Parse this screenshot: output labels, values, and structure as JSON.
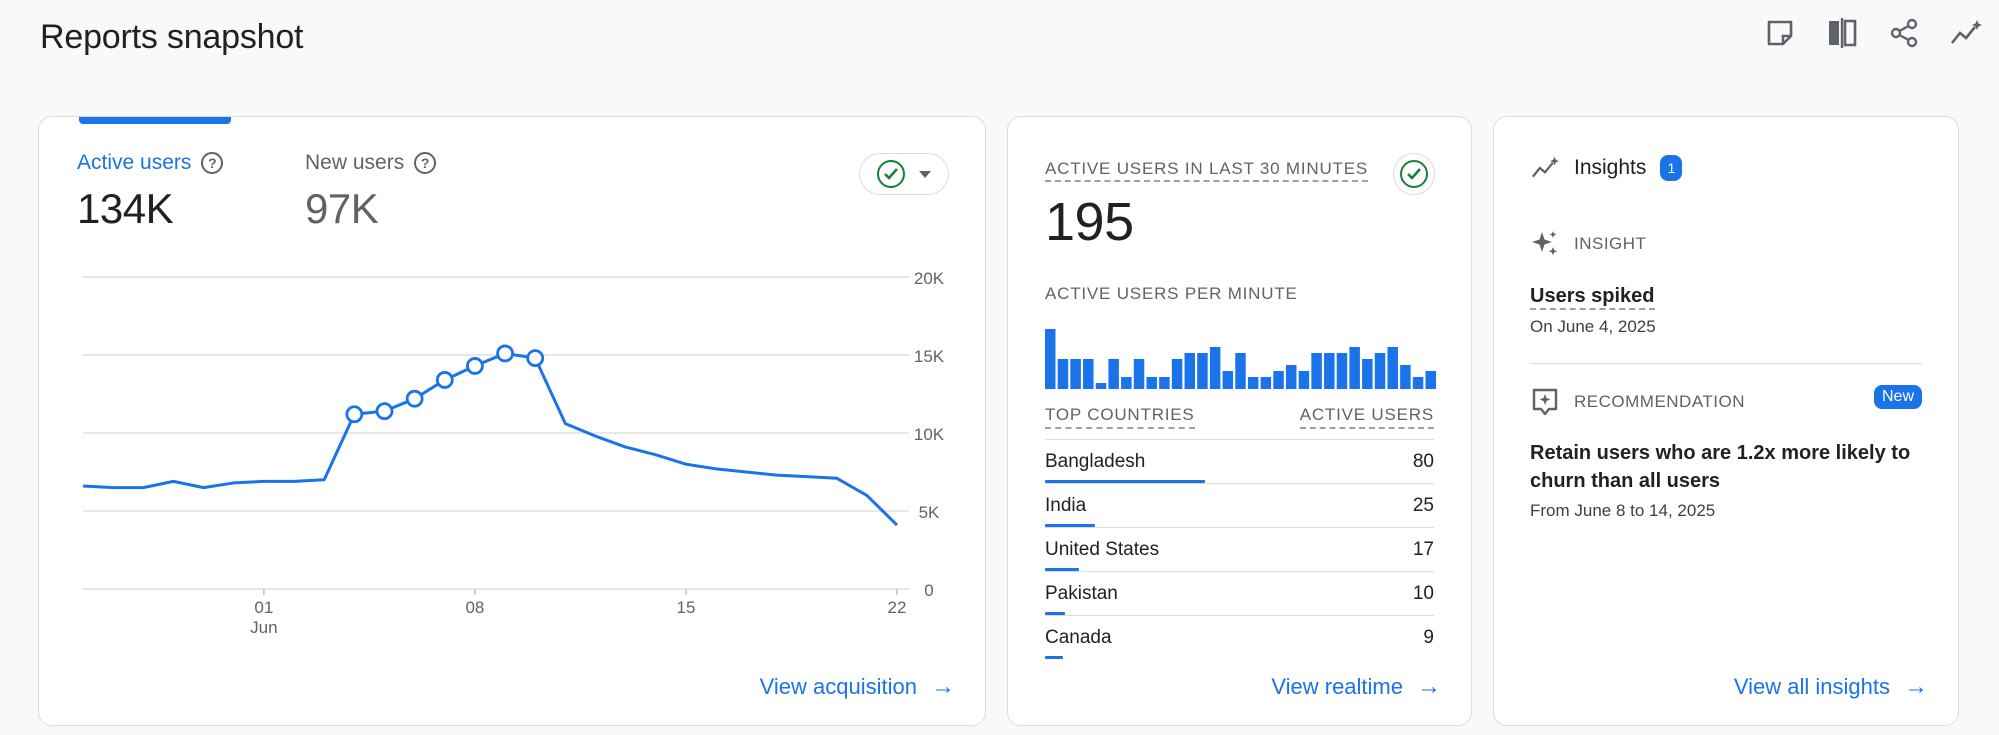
{
  "header": {
    "title": "Reports snapshot"
  },
  "toolbar": {
    "icons": [
      "customize-report-icon",
      "compare-icon",
      "share-icon",
      "insights-icon"
    ]
  },
  "card_overview": {
    "metrics": [
      {
        "label": "Active users",
        "value": "134K",
        "selected": true
      },
      {
        "label": "New users",
        "value": "97K",
        "selected": false
      }
    ],
    "status": "check-circle",
    "link": "View acquisition"
  },
  "chart_data": {
    "type": "line",
    "series": [
      {
        "name": "Active users",
        "values": [
          6600,
          6500,
          6500,
          6900,
          6500,
          6800,
          6900,
          6900,
          7000,
          11200,
          11400,
          12200,
          13400,
          14300,
          15100,
          14800,
          10600,
          9800,
          9100,
          8600,
          8000,
          7700,
          7500,
          7300,
          7200,
          7100,
          6000,
          4100
        ]
      }
    ],
    "highlight_points": [
      9,
      10,
      11,
      12,
      13,
      14,
      15
    ],
    "x_ticks": [
      {
        "index": 6,
        "label": "01",
        "sublabel": "Jun"
      },
      {
        "index": 13,
        "label": "08"
      },
      {
        "index": 20,
        "label": "15"
      },
      {
        "index": 27,
        "label": "22"
      }
    ],
    "y_ticks": [
      "0",
      "5K",
      "10K",
      "15K",
      "20K"
    ],
    "ylim": [
      0,
      20000
    ],
    "grid": true,
    "color": "#1a73e8"
  },
  "card_realtime": {
    "label": "ACTIVE USERS IN LAST 30 MINUTES",
    "value": "195",
    "per_minute_label": "ACTIVE USERS PER MINUTE",
    "per_minute": [
      10,
      5,
      5,
      5,
      1,
      5,
      2,
      5,
      2,
      2,
      5,
      6,
      6,
      7,
      3,
      6,
      2,
      2,
      3,
      4,
      3,
      6,
      6,
      6,
      7,
      5,
      6,
      7,
      4,
      2,
      3
    ],
    "col_country": "TOP COUNTRIES",
    "col_users": "ACTIVE USERS",
    "countries": [
      {
        "name": "Bangladesh",
        "value": "80",
        "share": 1.0
      },
      {
        "name": "India",
        "value": "25",
        "share": 0.31
      },
      {
        "name": "United States",
        "value": "17",
        "share": 0.21
      },
      {
        "name": "Pakistan",
        "value": "10",
        "share": 0.125
      },
      {
        "name": "Canada",
        "value": "9",
        "share": 0.11
      }
    ],
    "link": "View realtime"
  },
  "card_insights": {
    "title": "Insights",
    "count": "1",
    "insight_label": "INSIGHT",
    "insight_title": "Users spiked",
    "insight_sub": "On June 4, 2025",
    "rec_label": "RECOMMENDATION",
    "rec_badge": "New",
    "rec_title": "Retain users who are 1.2x more likely to churn than all users",
    "rec_sub": "From June 8 to 14, 2025",
    "link": "View all insights"
  }
}
